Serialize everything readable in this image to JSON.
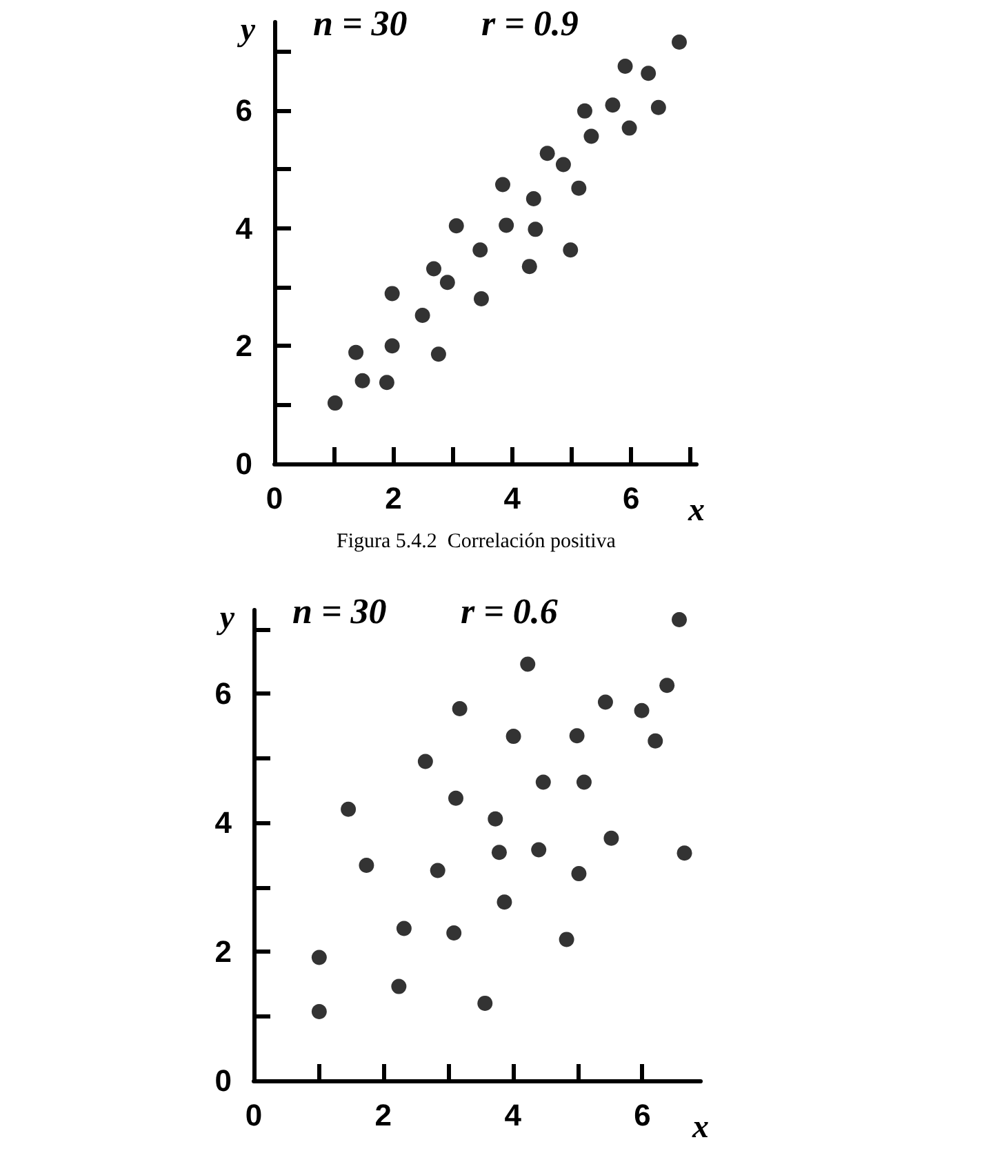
{
  "chart_data": [
    {
      "type": "scatter",
      "title": "Figura 5.4.2  Correlación positiva",
      "xlabel": "x",
      "ylabel": "y",
      "annotations": [
        "n = 30",
        "r = 0.9"
      ],
      "marker": "circle",
      "grid": false,
      "xlim": [
        0,
        7.1
      ],
      "ylim": [
        0,
        7.5
      ],
      "xticks": [
        0,
        {
          "value": 1,
          "label": null
        },
        2,
        {
          "value": 3,
          "label": null
        },
        4,
        {
          "value": 5,
          "label": null
        },
        6,
        {
          "value": 7,
          "label": null
        }
      ],
      "yticks": [
        0,
        {
          "value": 1,
          "label": null
        },
        2,
        {
          "value": 3,
          "label": null
        },
        4,
        {
          "value": 5,
          "label": null
        },
        6,
        {
          "value": 7,
          "label": null
        }
      ],
      "series": [
        {
          "color": "#000000",
          "x": [
            1.02,
            1.37,
            1.48,
            1.89,
            1.98,
            1.98,
            2.49,
            2.68,
            2.76,
            2.91,
            3.06,
            3.46,
            3.48,
            3.84,
            3.9,
            4.29,
            4.36,
            4.39,
            4.59,
            4.86,
            4.98,
            5.12,
            5.22,
            5.33,
            5.69,
            5.9,
            5.97,
            6.29,
            6.46,
            6.81
          ],
          "values": [
            1.03,
            1.89,
            1.41,
            1.38,
            2.89,
            2.0,
            2.52,
            3.31,
            1.86,
            3.08,
            4.04,
            3.63,
            2.8,
            4.74,
            4.05,
            3.35,
            4.5,
            3.98,
            5.27,
            5.08,
            3.63,
            4.68,
            5.99,
            5.56,
            6.09,
            6.75,
            5.7,
            6.63,
            6.05,
            7.16
          ]
        }
      ]
    },
    {
      "type": "scatter",
      "xlabel": "x",
      "ylabel": "y",
      "annotations": [
        "n = 30",
        "r = 0.6"
      ],
      "marker": "circle",
      "grid": false,
      "xlim": [
        0,
        6.9
      ],
      "ylim": [
        0,
        7.3
      ],
      "xticks": [
        0,
        {
          "value": 1,
          "label": null
        },
        2,
        {
          "value": 3,
          "label": null
        },
        4,
        {
          "value": 5,
          "label": null
        },
        6
      ],
      "yticks": [
        0,
        {
          "value": 1,
          "label": null
        },
        2,
        {
          "value": 3,
          "label": null
        },
        4,
        {
          "value": 5,
          "label": null
        },
        6,
        {
          "value": 7,
          "label": null
        }
      ],
      "series": [
        {
          "color": "#000000",
          "x": [
            1.01,
            1.01,
            1.46,
            1.74,
            2.24,
            2.32,
            2.65,
            2.84,
            3.09,
            3.12,
            3.18,
            3.57,
            3.73,
            3.79,
            3.87,
            4.01,
            4.23,
            4.4,
            4.47,
            4.83,
            4.99,
            5.02,
            5.1,
            5.43,
            5.52,
            5.99,
            6.2,
            6.38,
            6.65,
            6.57
          ],
          "values": [
            1.07,
            1.91,
            4.21,
            3.34,
            1.46,
            2.36,
            4.95,
            3.26,
            2.29,
            4.38,
            5.77,
            1.2,
            4.06,
            3.54,
            2.77,
            5.34,
            6.46,
            3.58,
            4.63,
            2.19,
            5.35,
            3.21,
            4.63,
            5.87,
            3.76,
            5.74,
            5.27,
            6.13,
            3.53,
            7.15
          ]
        }
      ]
    }
  ]
}
